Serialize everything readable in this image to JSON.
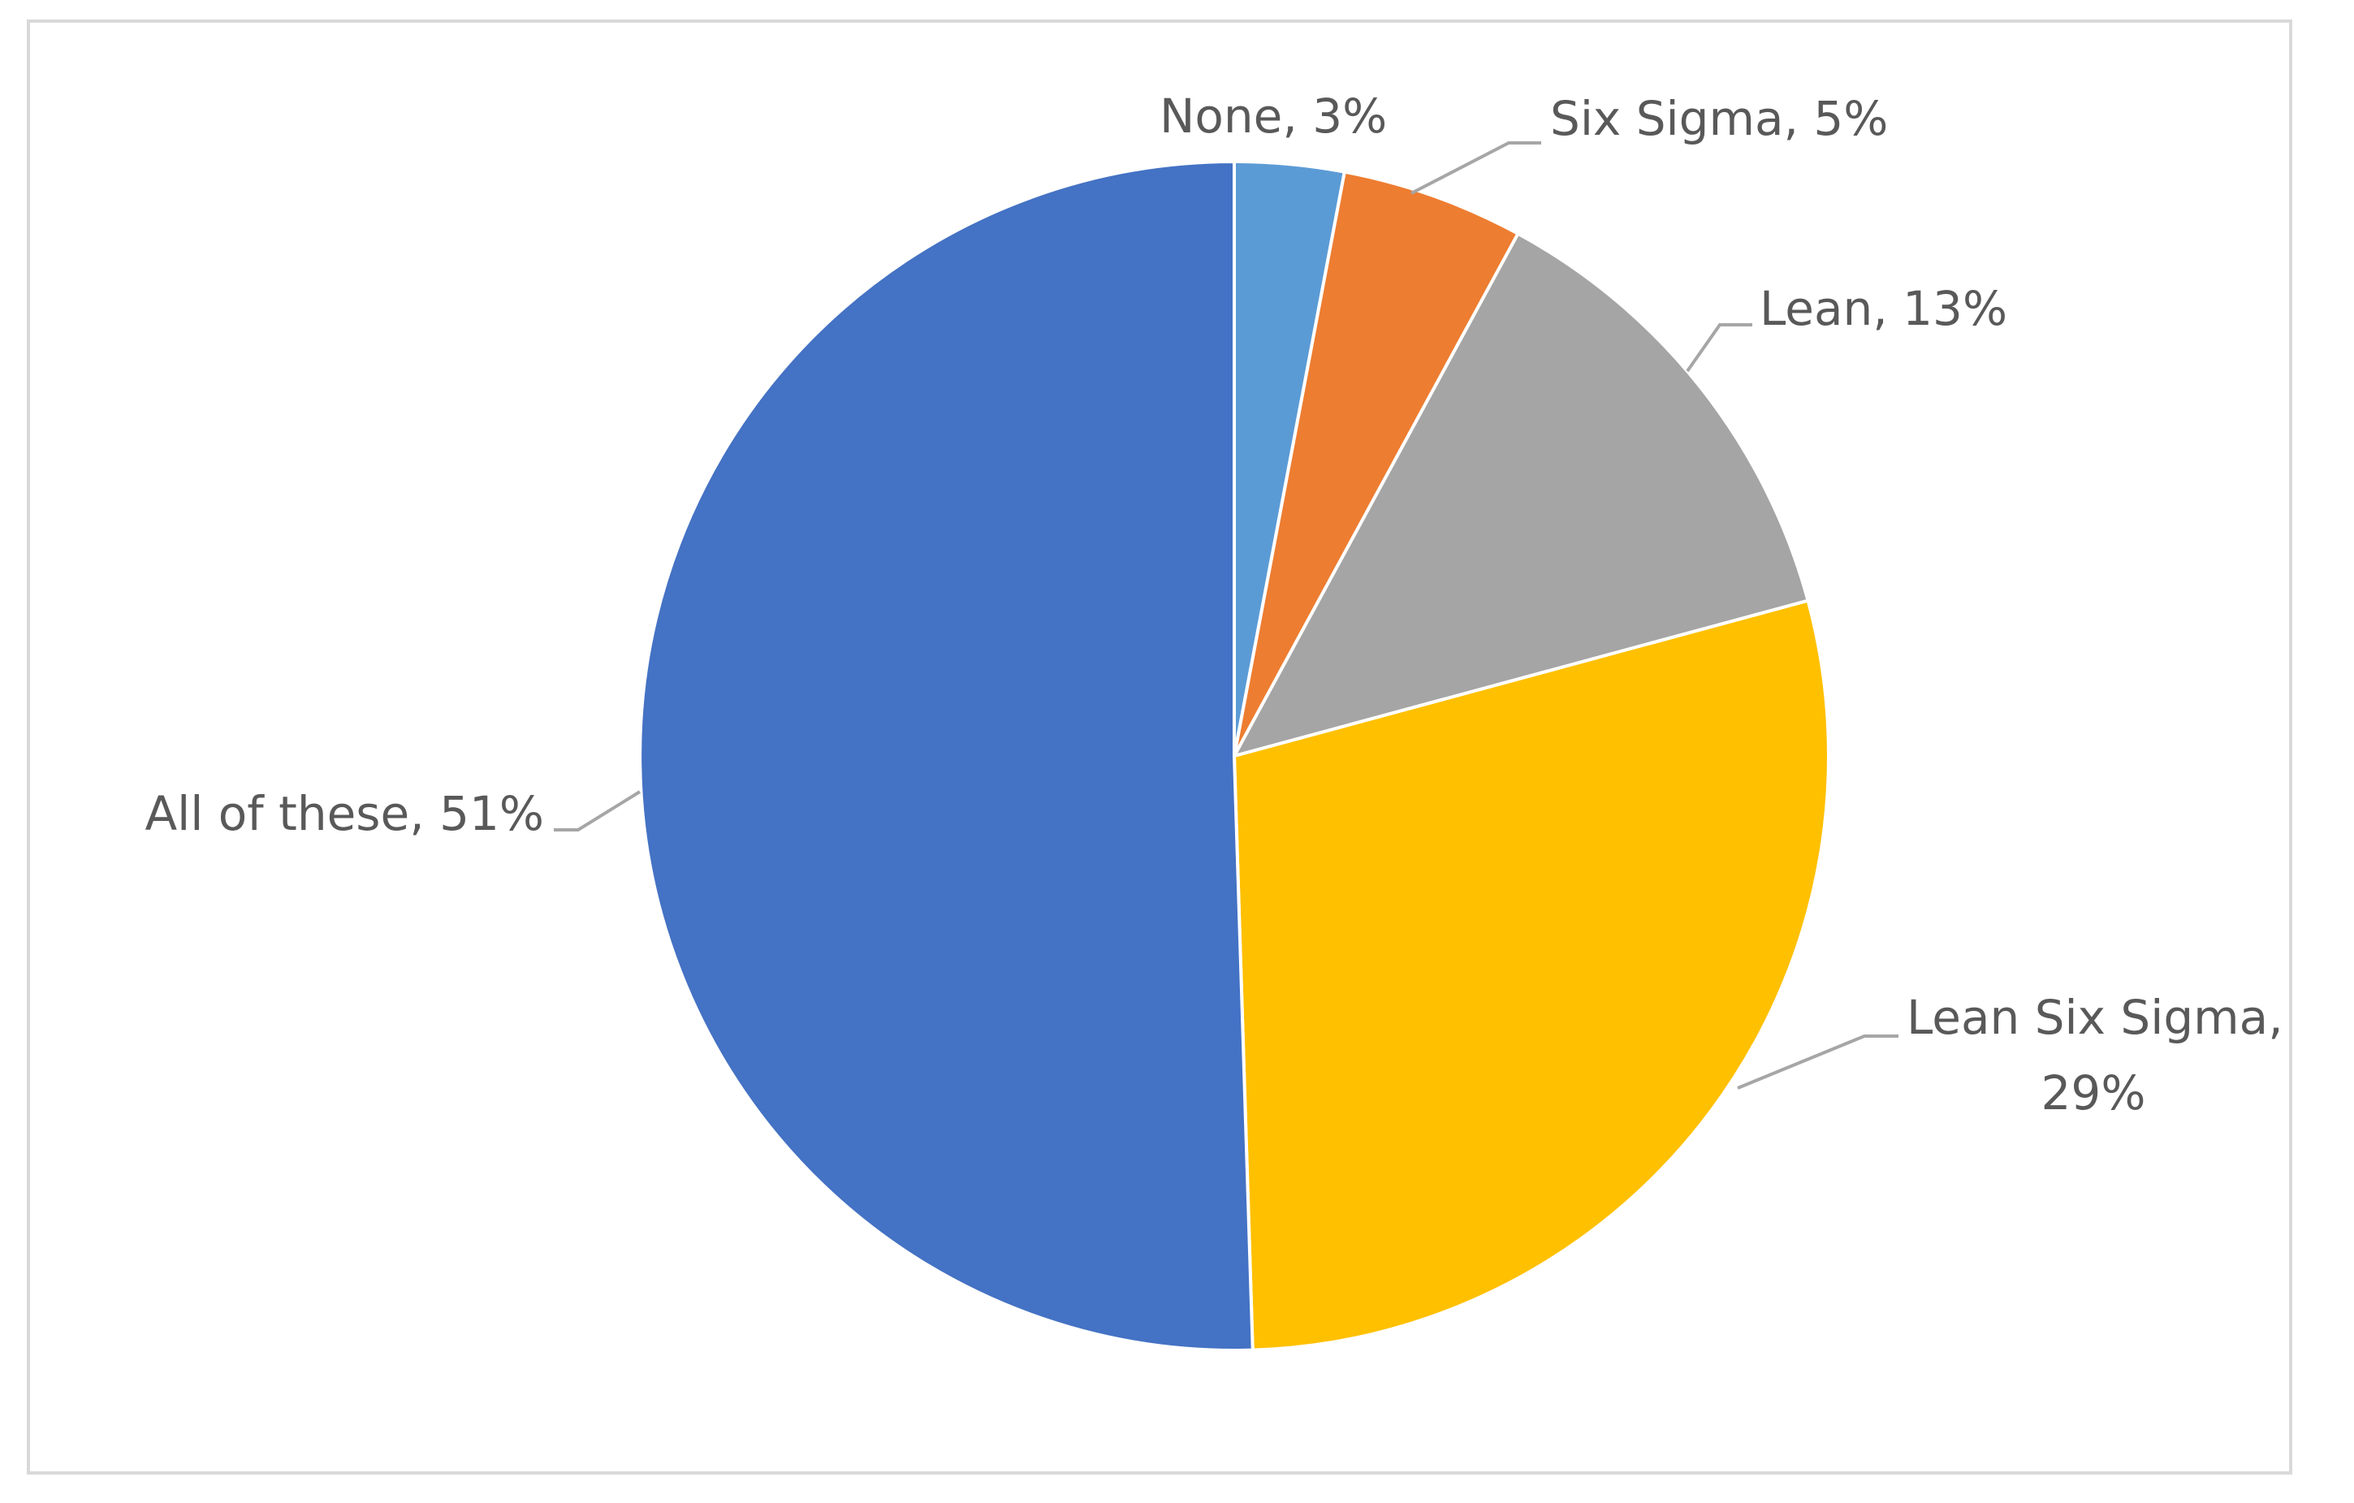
{
  "chart_data": {
    "type": "pie",
    "title": "",
    "start_angle_deg": 0,
    "direction": "clockwise",
    "slices": [
      {
        "label": "None",
        "value": 3,
        "value_label": "3%",
        "color": "#5b9bd5"
      },
      {
        "label": "Six Sigma",
        "value": 5,
        "value_label": "5%",
        "color": "#ed7d31"
      },
      {
        "label": "Lean",
        "value": 13,
        "value_label": "13%",
        "color": "#a5a5a5"
      },
      {
        "label": "Lean Six Sigma",
        "value": 29,
        "value_label": "29%",
        "color": "#ffc000"
      },
      {
        "label": "All of these",
        "value": 51,
        "value_label": "51%",
        "color": "#4472c4"
      }
    ],
    "legend": "none",
    "data_labels": "outside with leader lines (category name, percentage)"
  }
}
